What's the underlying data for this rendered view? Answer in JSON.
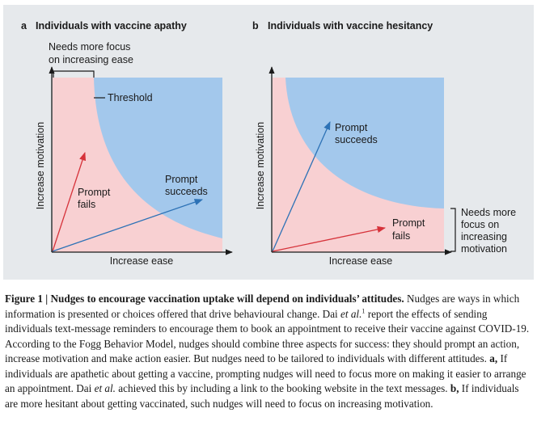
{
  "panel_a": {
    "letter": "a",
    "title": "Individuals with vaccine apathy",
    "note_line1": "Needs more focus",
    "note_line2": "on increasing ease",
    "threshold_label": "Threshold",
    "prompt_fails_line1": "Prompt",
    "prompt_fails_line2": "fails",
    "prompt_succeeds_line1": "Prompt",
    "prompt_succeeds_line2": "succeeds",
    "y_axis": "Increase motivation",
    "x_axis": "Increase ease"
  },
  "panel_b": {
    "letter": "b",
    "title": "Individuals with vaccine hesitancy",
    "prompt_succeeds_line1": "Prompt",
    "prompt_succeeds_line2": "succeeds",
    "prompt_fails_line1": "Prompt",
    "prompt_fails_line2": "fails",
    "note_line1": "Needs more",
    "note_line2": "focus on",
    "note_line3": "increasing",
    "note_line4": "motivation",
    "y_axis": "Increase motivation",
    "x_axis": "Increase ease"
  },
  "colors": {
    "panel_background": "#e6e9ec",
    "fail_region": "#f8d0d2",
    "success_region": "#a3c8ec",
    "red_arrow": "#d6323a",
    "blue_arrow": "#2d72b6",
    "axis": "#1a1a1a"
  },
  "caption": {
    "bold_lead": "Figure 1 | Nudges to encourage vaccination uptake will depend on individuals’ attitudes.",
    "text_1": " Nudges are ways in which information is presented or choices offered that drive behavioural change. Dai ",
    "et_al_1": "et al.",
    "ref": "1",
    "text_2": " report the effects of sending individuals text-message reminders to encourage them to book an appointment to receive their vaccine against COVID-19. According to the Fogg Behavior Model, nudges should combine three aspects for success: they should prompt an action, increase motivation and make action easier. But nudges need to be tailored to individuals with different attitudes. ",
    "label_a": "a,",
    "text_3": " If individuals are apathetic about getting a vaccine, prompting nudges will need to focus more on making it easier to arrange an appointment. Dai ",
    "et_al_2": "et al.",
    "text_4": " achieved this by including a link to the booking website in the text messages. ",
    "label_b": "b,",
    "text_5": " If individuals are more hesitant about getting vaccinated, such nudges will need to focus on increasing motivation."
  }
}
